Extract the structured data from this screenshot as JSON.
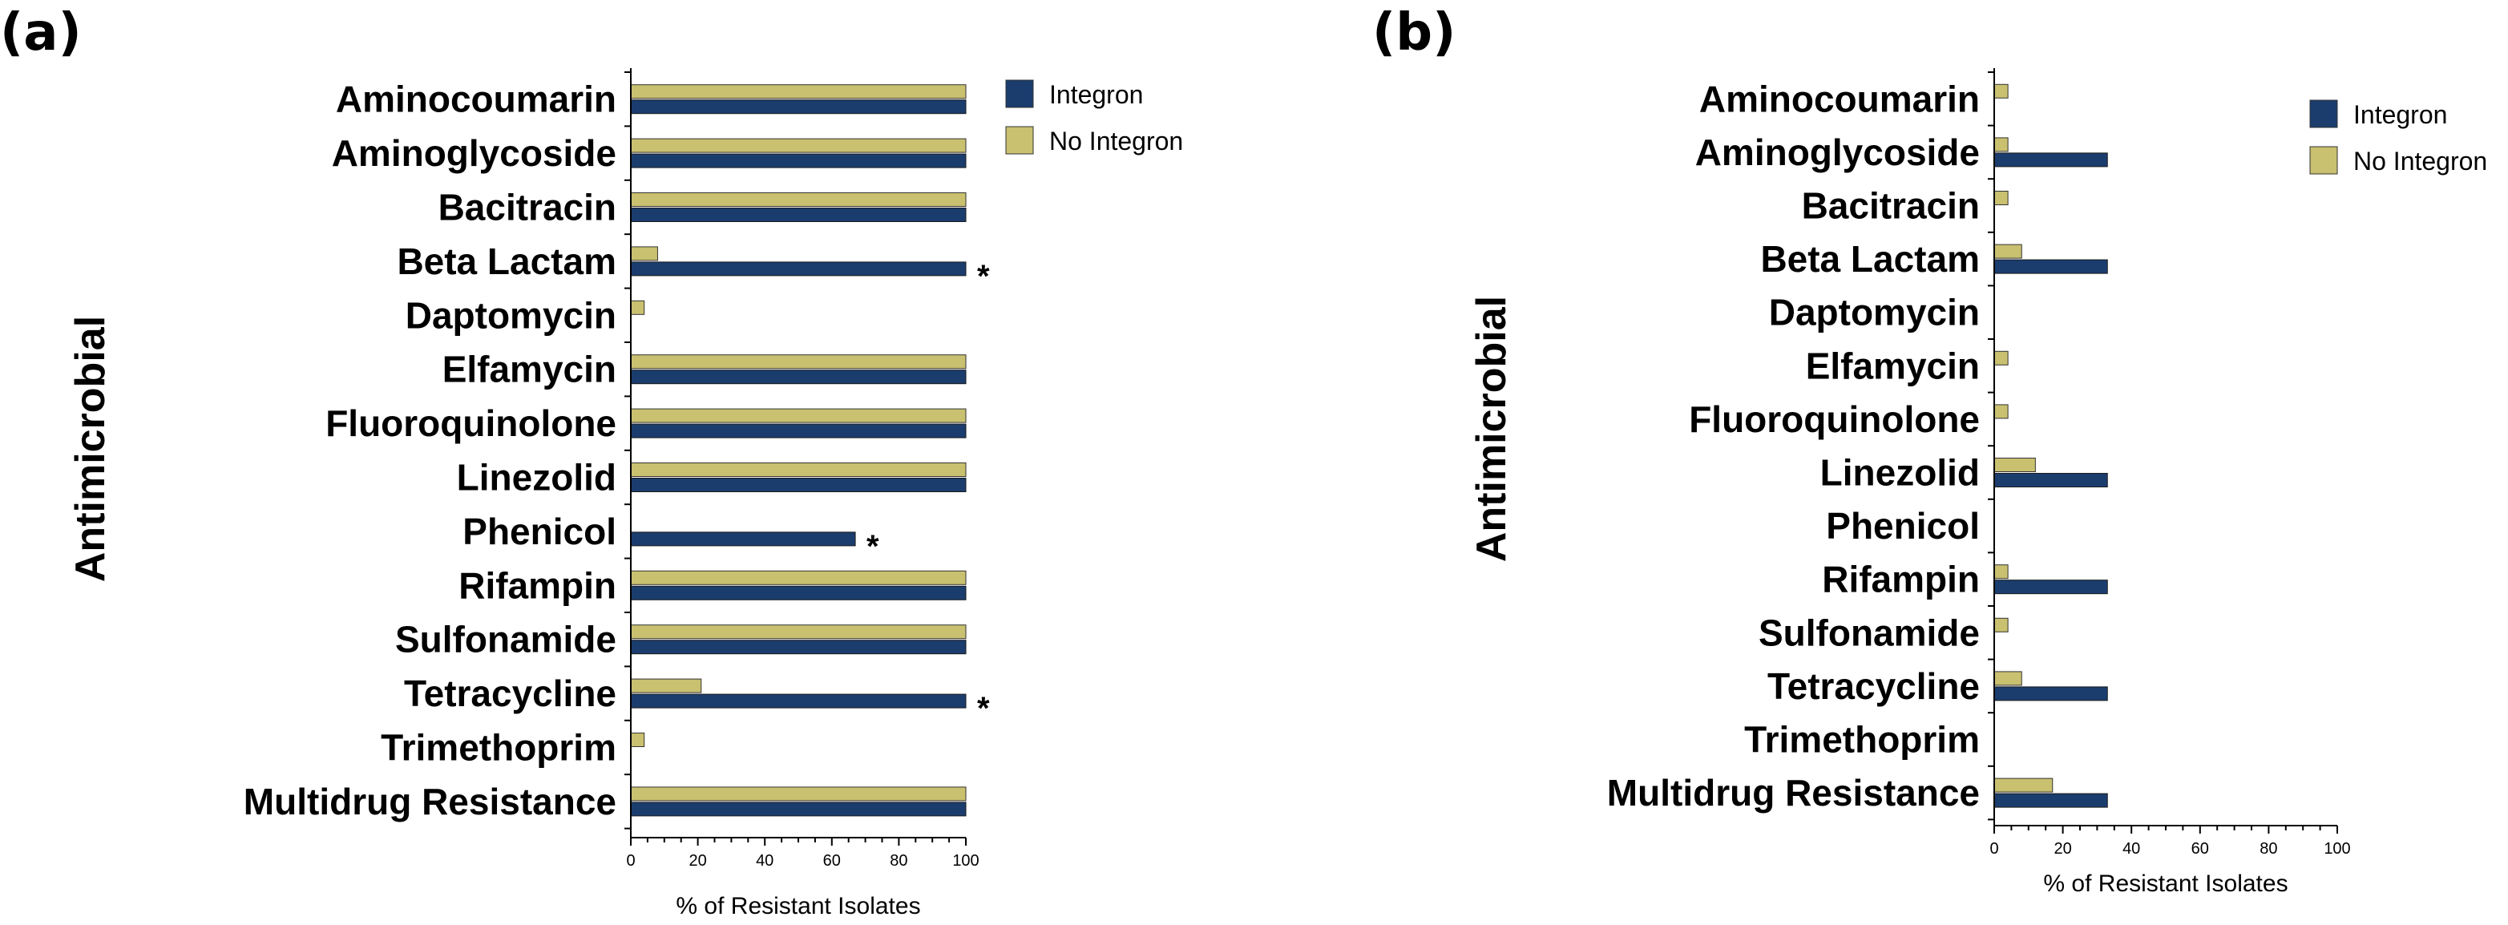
{
  "chart_data": [
    {
      "panel": "(a)",
      "type": "bar",
      "orientation": "horizontal",
      "ylabel": "Antimicrobial",
      "xlabel": "% of Resistant Isolates",
      "xlim": [
        0,
        100
      ],
      "ticks": [
        "0",
        "20",
        "40",
        "60",
        "80",
        "100"
      ],
      "categories": [
        "Aminocoumarin",
        "Aminoglycoside",
        "Bacitracin",
        "Beta Lactam",
        "Daptomycin",
        "Elfamycin",
        "Fluoroquinolone",
        "Linezolid",
        "Phenicol",
        "Rifampin",
        "Sulfonamide",
        "Tetracycline",
        "Trimethoprim",
        "Multidrug Resistance"
      ],
      "series": [
        {
          "name": "Integron",
          "color": "#1a3d6e",
          "values": [
            100,
            100,
            100,
            100,
            0,
            100,
            100,
            100,
            67,
            100,
            100,
            100,
            0,
            100
          ]
        },
        {
          "name": "No Integron",
          "color": "#c9c070",
          "values": [
            100,
            100,
            100,
            8,
            4,
            100,
            100,
            100,
            0,
            100,
            100,
            21,
            4,
            100
          ]
        }
      ],
      "annotations": [
        {
          "category": "Beta Lactam",
          "text": "*"
        },
        {
          "category": "Phenicol",
          "text": "*"
        },
        {
          "category": "Tetracycline",
          "text": "*"
        }
      ]
    },
    {
      "panel": "(b)",
      "type": "bar",
      "orientation": "horizontal",
      "ylabel": "Antimicrobial",
      "xlabel": "% of Resistant Isolates",
      "xlim": [
        0,
        100
      ],
      "ticks": [
        "0",
        "20",
        "40",
        "60",
        "80",
        "100"
      ],
      "categories": [
        "Aminocoumarin",
        "Aminoglycoside",
        "Bacitracin",
        "Beta Lactam",
        "Daptomycin",
        "Elfamycin",
        "Fluoroquinolone",
        "Linezolid",
        "Phenicol",
        "Rifampin",
        "Sulfonamide",
        "Tetracycline",
        "Trimethoprim",
        "Multidrug Resistance"
      ],
      "series": [
        {
          "name": "Integron",
          "color": "#1a3d6e",
          "values": [
            0,
            33,
            0,
            33,
            0,
            0,
            0,
            33,
            0,
            33,
            0,
            33,
            0,
            33
          ]
        },
        {
          "name": "No Integron",
          "color": "#c9c070",
          "values": [
            4,
            4,
            4,
            8,
            0,
            4,
            4,
            12,
            0,
            4,
            4,
            8,
            0,
            17
          ]
        }
      ],
      "annotations": []
    }
  ]
}
